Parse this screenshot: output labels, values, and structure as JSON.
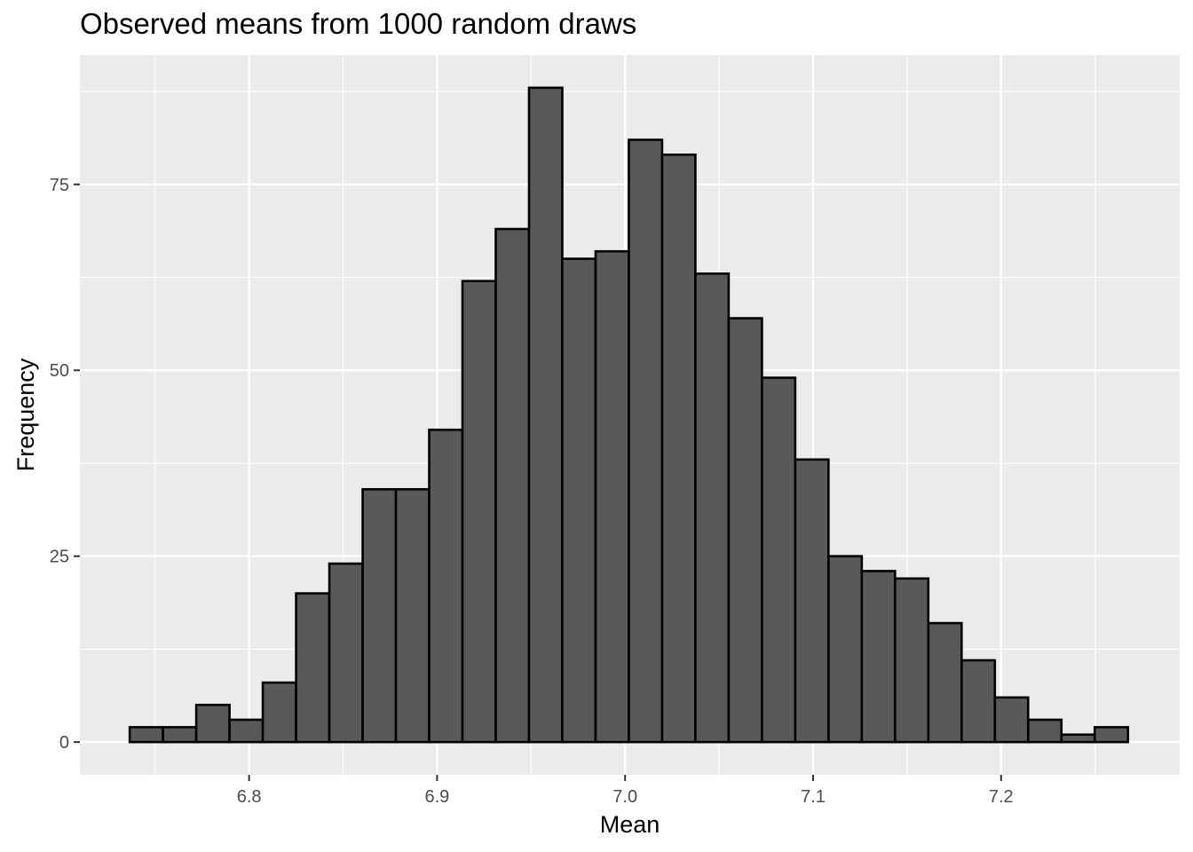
{
  "chart_data": {
    "type": "bar",
    "title": "Observed means from 1000 random draws",
    "xlabel": "Mean",
    "ylabel": "Frequency",
    "bin_width": 0.0177,
    "bin_start": 6.7365,
    "counts": [
      2,
      2,
      5,
      3,
      8,
      20,
      24,
      34,
      34,
      42,
      62,
      69,
      88,
      65,
      66,
      81,
      79,
      63,
      57,
      49,
      38,
      25,
      23,
      22,
      16,
      11,
      6,
      3,
      1,
      2
    ],
    "xlim": [
      6.71,
      7.295
    ],
    "ylim": [
      -4.4,
      92.4
    ],
    "x_ticks": [
      6.8,
      6.9,
      7.0,
      7.1,
      7.2
    ],
    "x_tick_labels": [
      "6.8",
      "6.9",
      "7.0",
      "7.1",
      "7.2"
    ],
    "y_ticks": [
      0,
      25,
      50,
      75
    ],
    "y_tick_labels": [
      "0",
      "25",
      "50",
      "75"
    ],
    "grid": true,
    "colors": {
      "panel_background": "#ebebeb",
      "grid_major": "#ffffff",
      "bar_fill": "#595959",
      "bar_outline": "#000000"
    }
  }
}
